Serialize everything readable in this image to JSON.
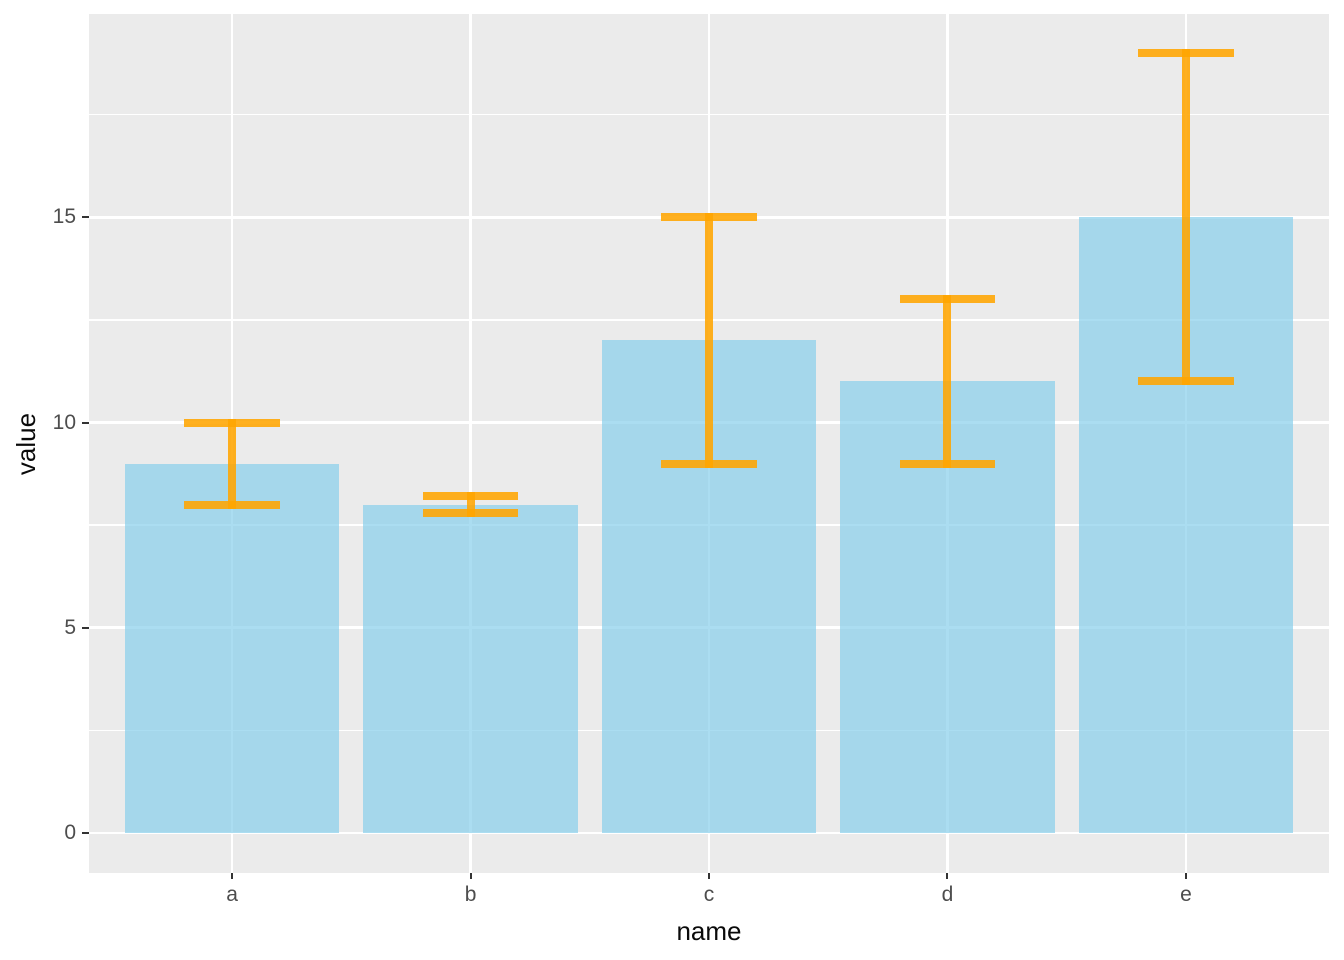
{
  "chart_data": {
    "type": "bar",
    "title": "",
    "xlabel": "name",
    "ylabel": "value",
    "categories": [
      "a",
      "b",
      "c",
      "d",
      "e"
    ],
    "values": [
      9,
      8,
      12,
      11,
      15
    ],
    "error_low": [
      8,
      7.8,
      9,
      9,
      11
    ],
    "error_high": [
      10,
      8.2,
      15,
      13,
      19
    ],
    "yticks": [
      0,
      5,
      10,
      15
    ],
    "yticks_minor": [
      2.5,
      7.5,
      12.5,
      17.5
    ],
    "ylim": [
      -0.95,
      19.95
    ],
    "grid": "horizontal major+minor, vertical major at category centers",
    "legend_position": "none",
    "colors": {
      "bar_fill": "rgba(135,206,235,0.7)",
      "error_bar": "rgba(255,165,0,0.88)",
      "panel_background": "#EBEBEB",
      "gridline": "#FFFFFF",
      "tick_label": "#4D4D4D",
      "axis_title": "#0a0a0a",
      "tick_mark": "#333333"
    }
  }
}
